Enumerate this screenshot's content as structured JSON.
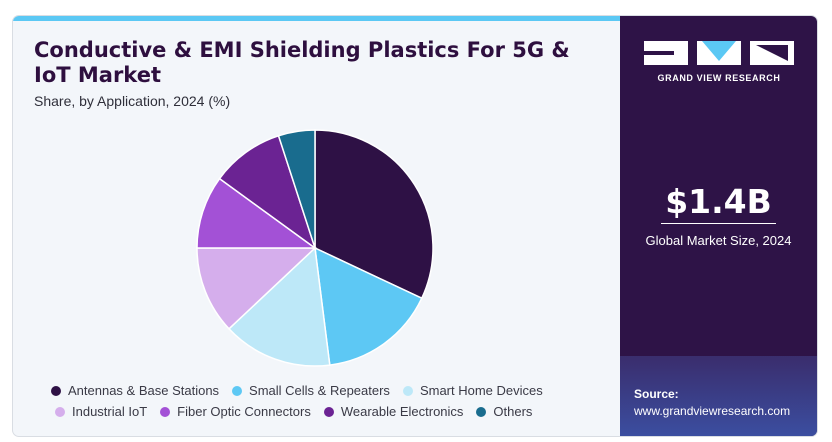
{
  "header": {
    "title": "Conductive & EMI Shielding Plastics For 5G & IoT Market",
    "subtitle": "Share, by Application, 2024 (%)"
  },
  "chart_data": {
    "type": "pie",
    "title": "Conductive & EMI Shielding Plastics For 5G & IoT Market",
    "subtitle": "Share, by Application, 2024 (%)",
    "legend_placement": "bottom",
    "slices": [
      {
        "label": "Antennas & Base Stations",
        "value": 32,
        "color": "#2e1145"
      },
      {
        "label": "Small Cells & Repeaters",
        "value": 16,
        "color": "#5dc8f4"
      },
      {
        "label": "Smart Home Devices",
        "value": 15,
        "color": "#bde8f8"
      },
      {
        "label": "Industrial IoT",
        "value": 12,
        "color": "#d5aeec"
      },
      {
        "label": "Fiber Optic Connectors",
        "value": 10,
        "color": "#a351d6"
      },
      {
        "label": "Wearable Electronics",
        "value": 10,
        "color": "#6b2393"
      },
      {
        "label": "Others",
        "value": 5,
        "color": "#196c8e"
      }
    ]
  },
  "side_panel": {
    "brand": "GRAND VIEW RESEARCH",
    "market_value": "$1.4B",
    "market_label": "Global Market Size, 2024",
    "source_label": "Source:",
    "source_url": "www.grandviewresearch.com"
  },
  "colors": {
    "accent": "#5bc8f4",
    "panel": "#2e1347",
    "title": "#2e0f3f"
  }
}
